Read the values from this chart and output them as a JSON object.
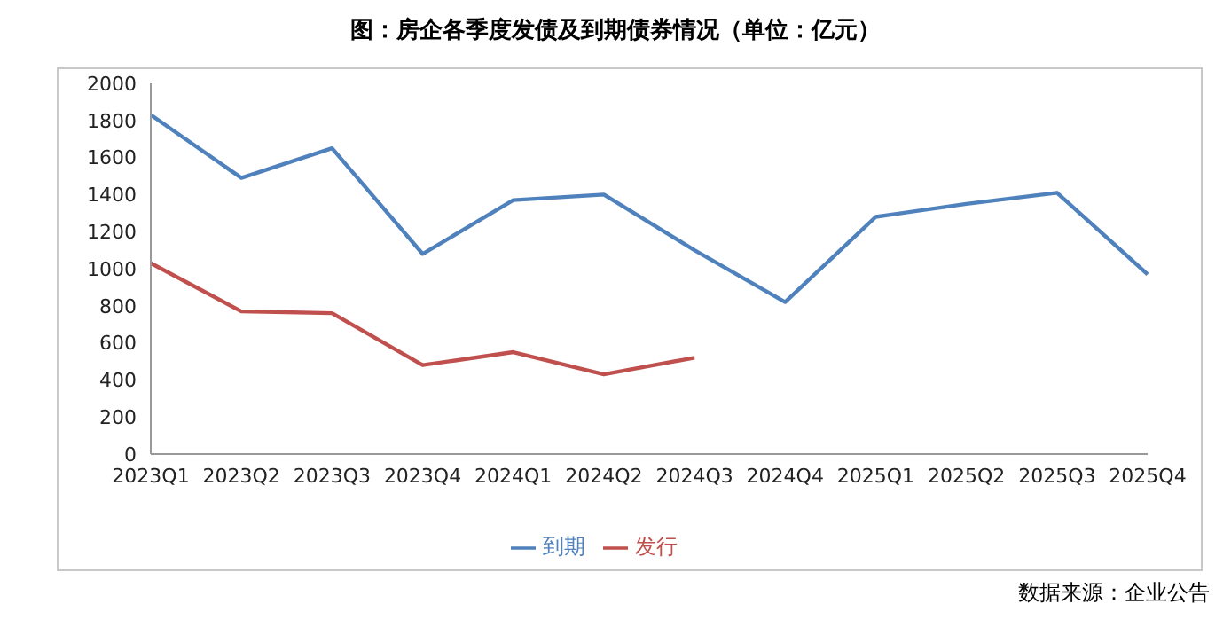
{
  "chart_data": {
    "type": "line",
    "title": "图：房企各季度发债及到期债券情况（单位：亿元）",
    "categories": [
      "2023Q1",
      "2023Q2",
      "2023Q3",
      "2023Q4",
      "2024Q1",
      "2024Q2",
      "2024Q3",
      "2024Q4",
      "2025Q1",
      "2025Q2",
      "2025Q3",
      "2025Q4"
    ],
    "series": [
      {
        "name": "到期",
        "color": "#4f81bd",
        "values": [
          1830,
          1490,
          1650,
          1080,
          1370,
          1400,
          1100,
          820,
          1280,
          1350,
          1410,
          970
        ]
      },
      {
        "name": "发行",
        "color": "#c0504d",
        "values": [
          1030,
          770,
          760,
          480,
          550,
          430,
          520,
          null,
          null,
          null,
          null,
          null
        ]
      }
    ],
    "ylim": [
      0,
      2000
    ],
    "yticks": [
      0,
      200,
      400,
      600,
      800,
      1000,
      1200,
      1400,
      1600,
      1800,
      2000
    ],
    "grid": false,
    "legend": "bottom",
    "marker": "none",
    "line_style": "solid",
    "annotations": [
      "数据来源：企业公告"
    ]
  }
}
